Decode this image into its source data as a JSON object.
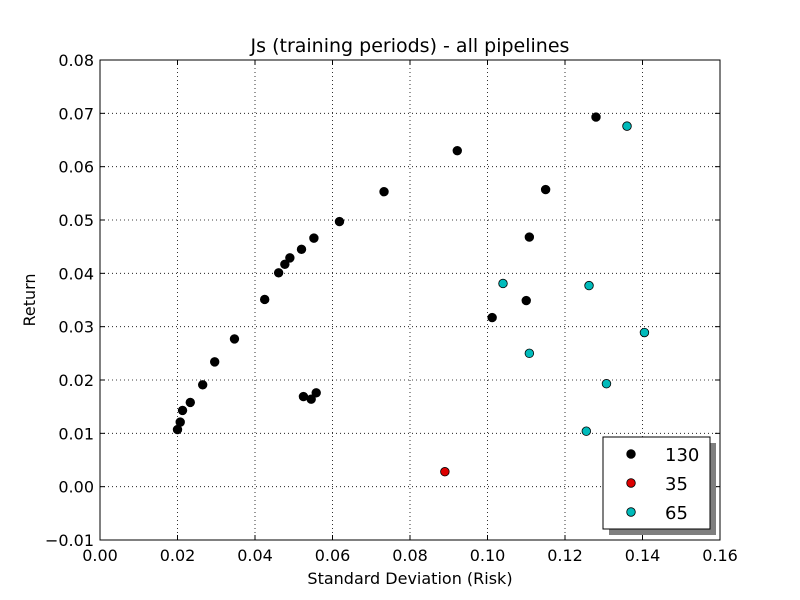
{
  "chart_data": {
    "type": "scatter",
    "title": "Js (training periods) - all pipelines",
    "xlabel": "Standard Deviation (Risk)",
    "ylabel": "Return",
    "xlim": [
      0.0,
      0.16
    ],
    "ylim": [
      -0.01,
      0.08
    ],
    "xticks": [
      "0.00",
      "0.02",
      "0.04",
      "0.06",
      "0.08",
      "0.10",
      "0.12",
      "0.14",
      "0.16"
    ],
    "yticks": [
      "−0.01",
      "0.00",
      "0.01",
      "0.02",
      "0.03",
      "0.04",
      "0.05",
      "0.06",
      "0.07",
      "0.08"
    ],
    "grid": true,
    "legend_position": "lower-right",
    "series": [
      {
        "name": "130",
        "color": "#000000",
        "points": [
          [
            0.02,
            0.0107
          ],
          [
            0.0207,
            0.0121
          ],
          [
            0.0213,
            0.0143
          ],
          [
            0.0233,
            0.0158
          ],
          [
            0.0265,
            0.0191
          ],
          [
            0.0296,
            0.0234
          ],
          [
            0.0347,
            0.0277
          ],
          [
            0.0425,
            0.0351
          ],
          [
            0.0461,
            0.0401
          ],
          [
            0.0477,
            0.0417
          ],
          [
            0.049,
            0.0429
          ],
          [
            0.052,
            0.0445
          ],
          [
            0.0552,
            0.0466
          ],
          [
            0.0618,
            0.0497
          ],
          [
            0.0733,
            0.0553
          ],
          [
            0.0922,
            0.063
          ],
          [
            0.128,
            0.0693
          ],
          [
            0.115,
            0.0557
          ],
          [
            0.1108,
            0.0468
          ],
          [
            0.11,
            0.0349
          ],
          [
            0.1012,
            0.0317
          ],
          [
            0.0525,
            0.0169
          ],
          [
            0.0545,
            0.0164
          ],
          [
            0.0558,
            0.0176
          ]
        ]
      },
      {
        "name": "35",
        "color": "#dd0000",
        "points": [
          [
            0.089,
            0.0028
          ]
        ]
      },
      {
        "name": "65",
        "color": "#00bbbb",
        "points": [
          [
            0.136,
            0.0676
          ],
          [
            0.104,
            0.0381
          ],
          [
            0.1262,
            0.0377
          ],
          [
            0.1405,
            0.0289
          ],
          [
            0.1108,
            0.025
          ],
          [
            0.1307,
            0.0193
          ],
          [
            0.1255,
            0.0104
          ]
        ]
      }
    ]
  }
}
